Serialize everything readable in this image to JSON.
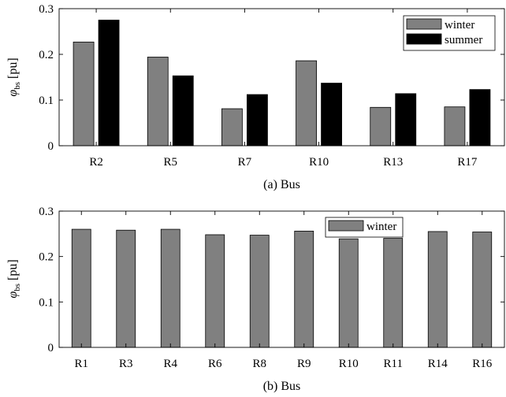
{
  "chart_data": [
    {
      "type": "bar",
      "title": "",
      "xlabel": "(a) Bus",
      "ylabel_main": "φ",
      "ylabel_sub": "bs",
      "ylabel_unit": "[pu]",
      "ylim": [
        0,
        0.3
      ],
      "yticks": [
        "0",
        "0.1",
        "0.2",
        "0.3"
      ],
      "grid": false,
      "legend_position": "top-right",
      "categories": [
        "R2",
        "R5",
        "R7",
        "R10",
        "R13",
        "R17"
      ],
      "series": [
        {
          "name": "winter",
          "color": "#808080",
          "values": [
            0.227,
            0.194,
            0.081,
            0.186,
            0.084,
            0.085
          ]
        },
        {
          "name": "summer",
          "color": "#000000",
          "values": [
            0.275,
            0.153,
            0.112,
            0.137,
            0.114,
            0.123
          ]
        }
      ]
    },
    {
      "type": "bar",
      "title": "",
      "xlabel": "(b) Bus",
      "ylabel_main": "φ",
      "ylabel_sub": "bs",
      "ylabel_unit": "[pu]",
      "ylim": [
        0,
        0.3
      ],
      "yticks": [
        "0",
        "0.1",
        "0.2",
        "0.3"
      ],
      "grid": false,
      "legend_position": "top-right",
      "categories": [
        "R1",
        "R3",
        "R4",
        "R6",
        "R8",
        "R9",
        "R10",
        "R11",
        "R14",
        "R16"
      ],
      "series": [
        {
          "name": "winter",
          "color": "#808080",
          "values": [
            0.26,
            0.258,
            0.26,
            0.248,
            0.247,
            0.256,
            0.239,
            0.24,
            0.255,
            0.254
          ]
        }
      ]
    }
  ]
}
